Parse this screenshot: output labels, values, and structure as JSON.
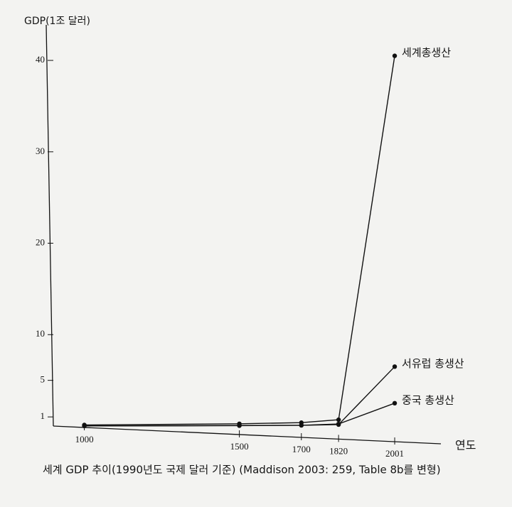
{
  "chart_data": {
    "type": "line",
    "y_label": "GDP(1조 달러)",
    "x_label": "연도",
    "caption": "세계 GDP 추이(1990년도 국제 달러 기준) (Maddison 2003: 259, Table 8b를 변형)",
    "x": [
      1000,
      1500,
      1700,
      1820,
      2001
    ],
    "series": [
      {
        "name": "세계총생산",
        "color": "#111111",
        "values": [
          0.12,
          0.25,
          0.37,
          0.69,
          40.5
        ]
      },
      {
        "name": "서유럽 총생산",
        "color": "#111111",
        "values": [
          0.01,
          0.04,
          0.08,
          0.16,
          6.5
        ]
      },
      {
        "name": "중국 총생산",
        "color": "#111111",
        "values": [
          0.03,
          0.06,
          0.08,
          0.23,
          2.5
        ]
      }
    ],
    "xlim": [
      900,
      2150
    ],
    "xticks": [
      1000,
      1500,
      1700,
      1820,
      2001
    ],
    "ylim": [
      0,
      43.5
    ],
    "yticks": [
      1,
      5,
      10,
      20,
      30,
      40
    ],
    "grid": false
  }
}
